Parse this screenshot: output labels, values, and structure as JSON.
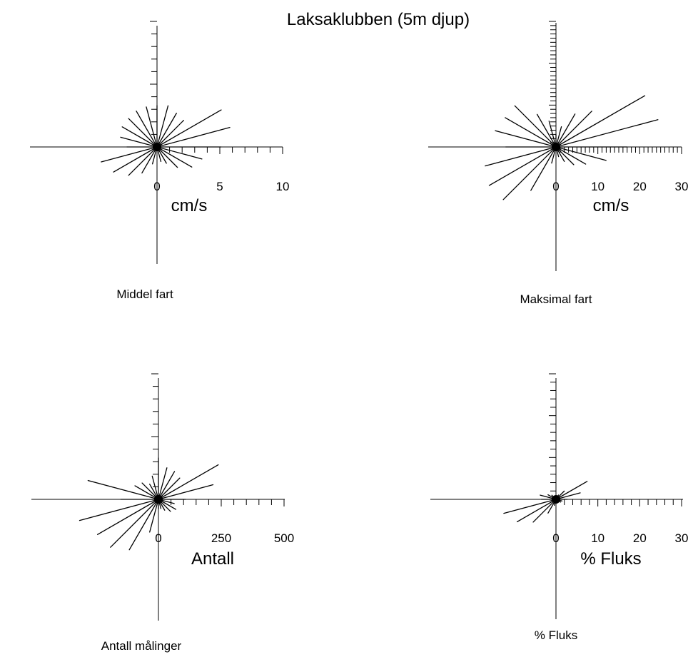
{
  "title": "Laksaklubben (5m djup)",
  "colors": {
    "lines": "#000000",
    "background": "#ffffff"
  },
  "chart_data": [
    {
      "type": "polar-vector",
      "caption": "Middel fart",
      "xlabel": "cm/s",
      "xlim": [
        0,
        10
      ],
      "tick_labels": [
        "0",
        "5",
        "10"
      ],
      "tick_label_values": [
        0,
        5,
        10
      ],
      "minor_tick_step": 1,
      "directions_deg": [
        0,
        15,
        30,
        45,
        60,
        75,
        90,
        105,
        120,
        135,
        150,
        165,
        180,
        195,
        210,
        225,
        240,
        255,
        270,
        285,
        300,
        315,
        330,
        345
      ],
      "values": [
        3.3,
        3.4,
        3.1,
        3.0,
        5.9,
        6.0,
        5.1,
        3.7,
        3.2,
        2.3,
        1.5,
        1.2,
        0.3,
        1.4,
        2.4,
        3.2,
        4.0,
        4.6,
        2.4,
        3.0,
        3.2,
        3.2,
        3.3,
        3.3
      ]
    },
    {
      "type": "polar-vector",
      "caption": "Maksimal fart",
      "xlabel": "cm/s",
      "xlim": [
        0,
        30
      ],
      "tick_labels": [
        "0",
        "10",
        "20",
        "30"
      ],
      "tick_label_values": [
        0,
        10,
        20,
        30
      ],
      "minor_tick_step": 1,
      "directions_deg": [
        0,
        15,
        30,
        45,
        60,
        75,
        90,
        105,
        120,
        135,
        150,
        165,
        180,
        195,
        210,
        225,
        240,
        255,
        270,
        285,
        300,
        315,
        330,
        345
      ],
      "values": [
        3.0,
        5.0,
        9.1,
        12.1,
        24.5,
        25.2,
        17.0,
        12.4,
        8.2,
        6.0,
        4.0,
        2.4,
        0.9,
        4.0,
        12.0,
        17.8,
        18.4,
        17.5,
        12.0,
        15.0,
        14.0,
        13.9,
        9.0,
        6.4
      ]
    },
    {
      "type": "polar-vector",
      "caption": "Antall målinger",
      "xlabel": "Antall",
      "xlim": [
        0,
        500
      ],
      "tick_labels": [
        "0",
        "250",
        "500"
      ],
      "tick_label_values": [
        0,
        250,
        500
      ],
      "minor_tick_step": 50,
      "directions_deg": [
        0,
        15,
        30,
        45,
        60,
        75,
        90,
        105,
        120,
        135,
        150,
        165,
        180,
        195,
        210,
        225,
        240,
        255,
        270,
        285,
        300,
        315,
        330,
        345
      ],
      "values": [
        165,
        130,
        128,
        120,
        275,
        225,
        108,
        65,
        80,
        68,
        50,
        38,
        38,
        135,
        232,
        270,
        280,
        325,
        150,
        290,
        108,
        92,
        70,
        96
      ]
    },
    {
      "type": "polar-vector",
      "caption": "% Fluks",
      "xlabel": "% Fluks",
      "xlim": [
        0,
        30
      ],
      "tick_labels": [
        "0",
        "10",
        "20",
        "30"
      ],
      "tick_label_values": [
        0,
        10,
        20,
        30
      ],
      "minor_tick_step": 2,
      "directions_deg": [
        0,
        15,
        30,
        45,
        60,
        75,
        90,
        105,
        120,
        135,
        150,
        165,
        180,
        195,
        210,
        225,
        240,
        255,
        270,
        285,
        300,
        315,
        330,
        345
      ],
      "values": [
        0.6,
        0.8,
        1.2,
        2.8,
        8.6,
        6.0,
        2.7,
        1.5,
        1.3,
        0.9,
        0.6,
        0.5,
        0.2,
        1.5,
        3.8,
        7.7,
        10.7,
        12.9,
        3.5,
        3.9,
        2.2,
        1.4,
        0.8,
        0.7
      ]
    }
  ]
}
